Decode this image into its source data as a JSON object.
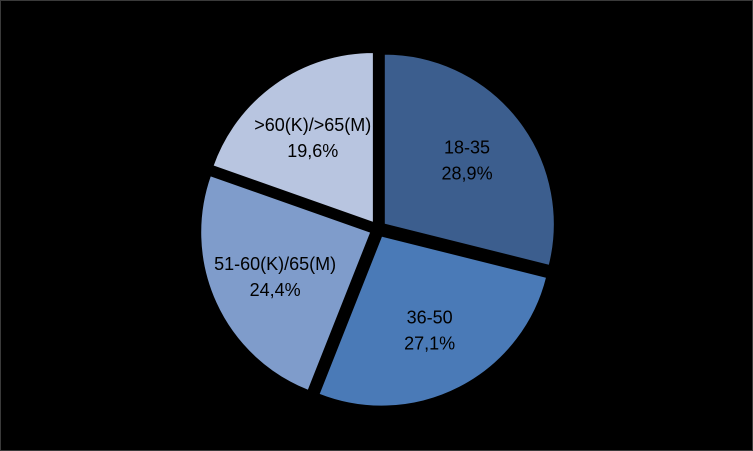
{
  "chart_data": {
    "type": "pie",
    "title": "",
    "slices": [
      {
        "label": "18-35",
        "value": 28.9,
        "value_label": "28,9%",
        "color": "#3C5E8E"
      },
      {
        "label": "36-50",
        "value": 27.1,
        "value_label": "27,1%",
        "color": "#4A7AB7"
      },
      {
        "label": "51-60(K)/65(M)",
        "value": 24.4,
        "value_label": "24,4%",
        "color": "#7F9CCB"
      },
      {
        "label": ">60(K)/>65(M)",
        "value": 19.6,
        "value_label": "19,6%",
        "color": "#B8C5E0"
      }
    ],
    "exploded": true,
    "start_angle": "12 o'clock, clockwise",
    "legend": "none",
    "background": "#000000"
  }
}
